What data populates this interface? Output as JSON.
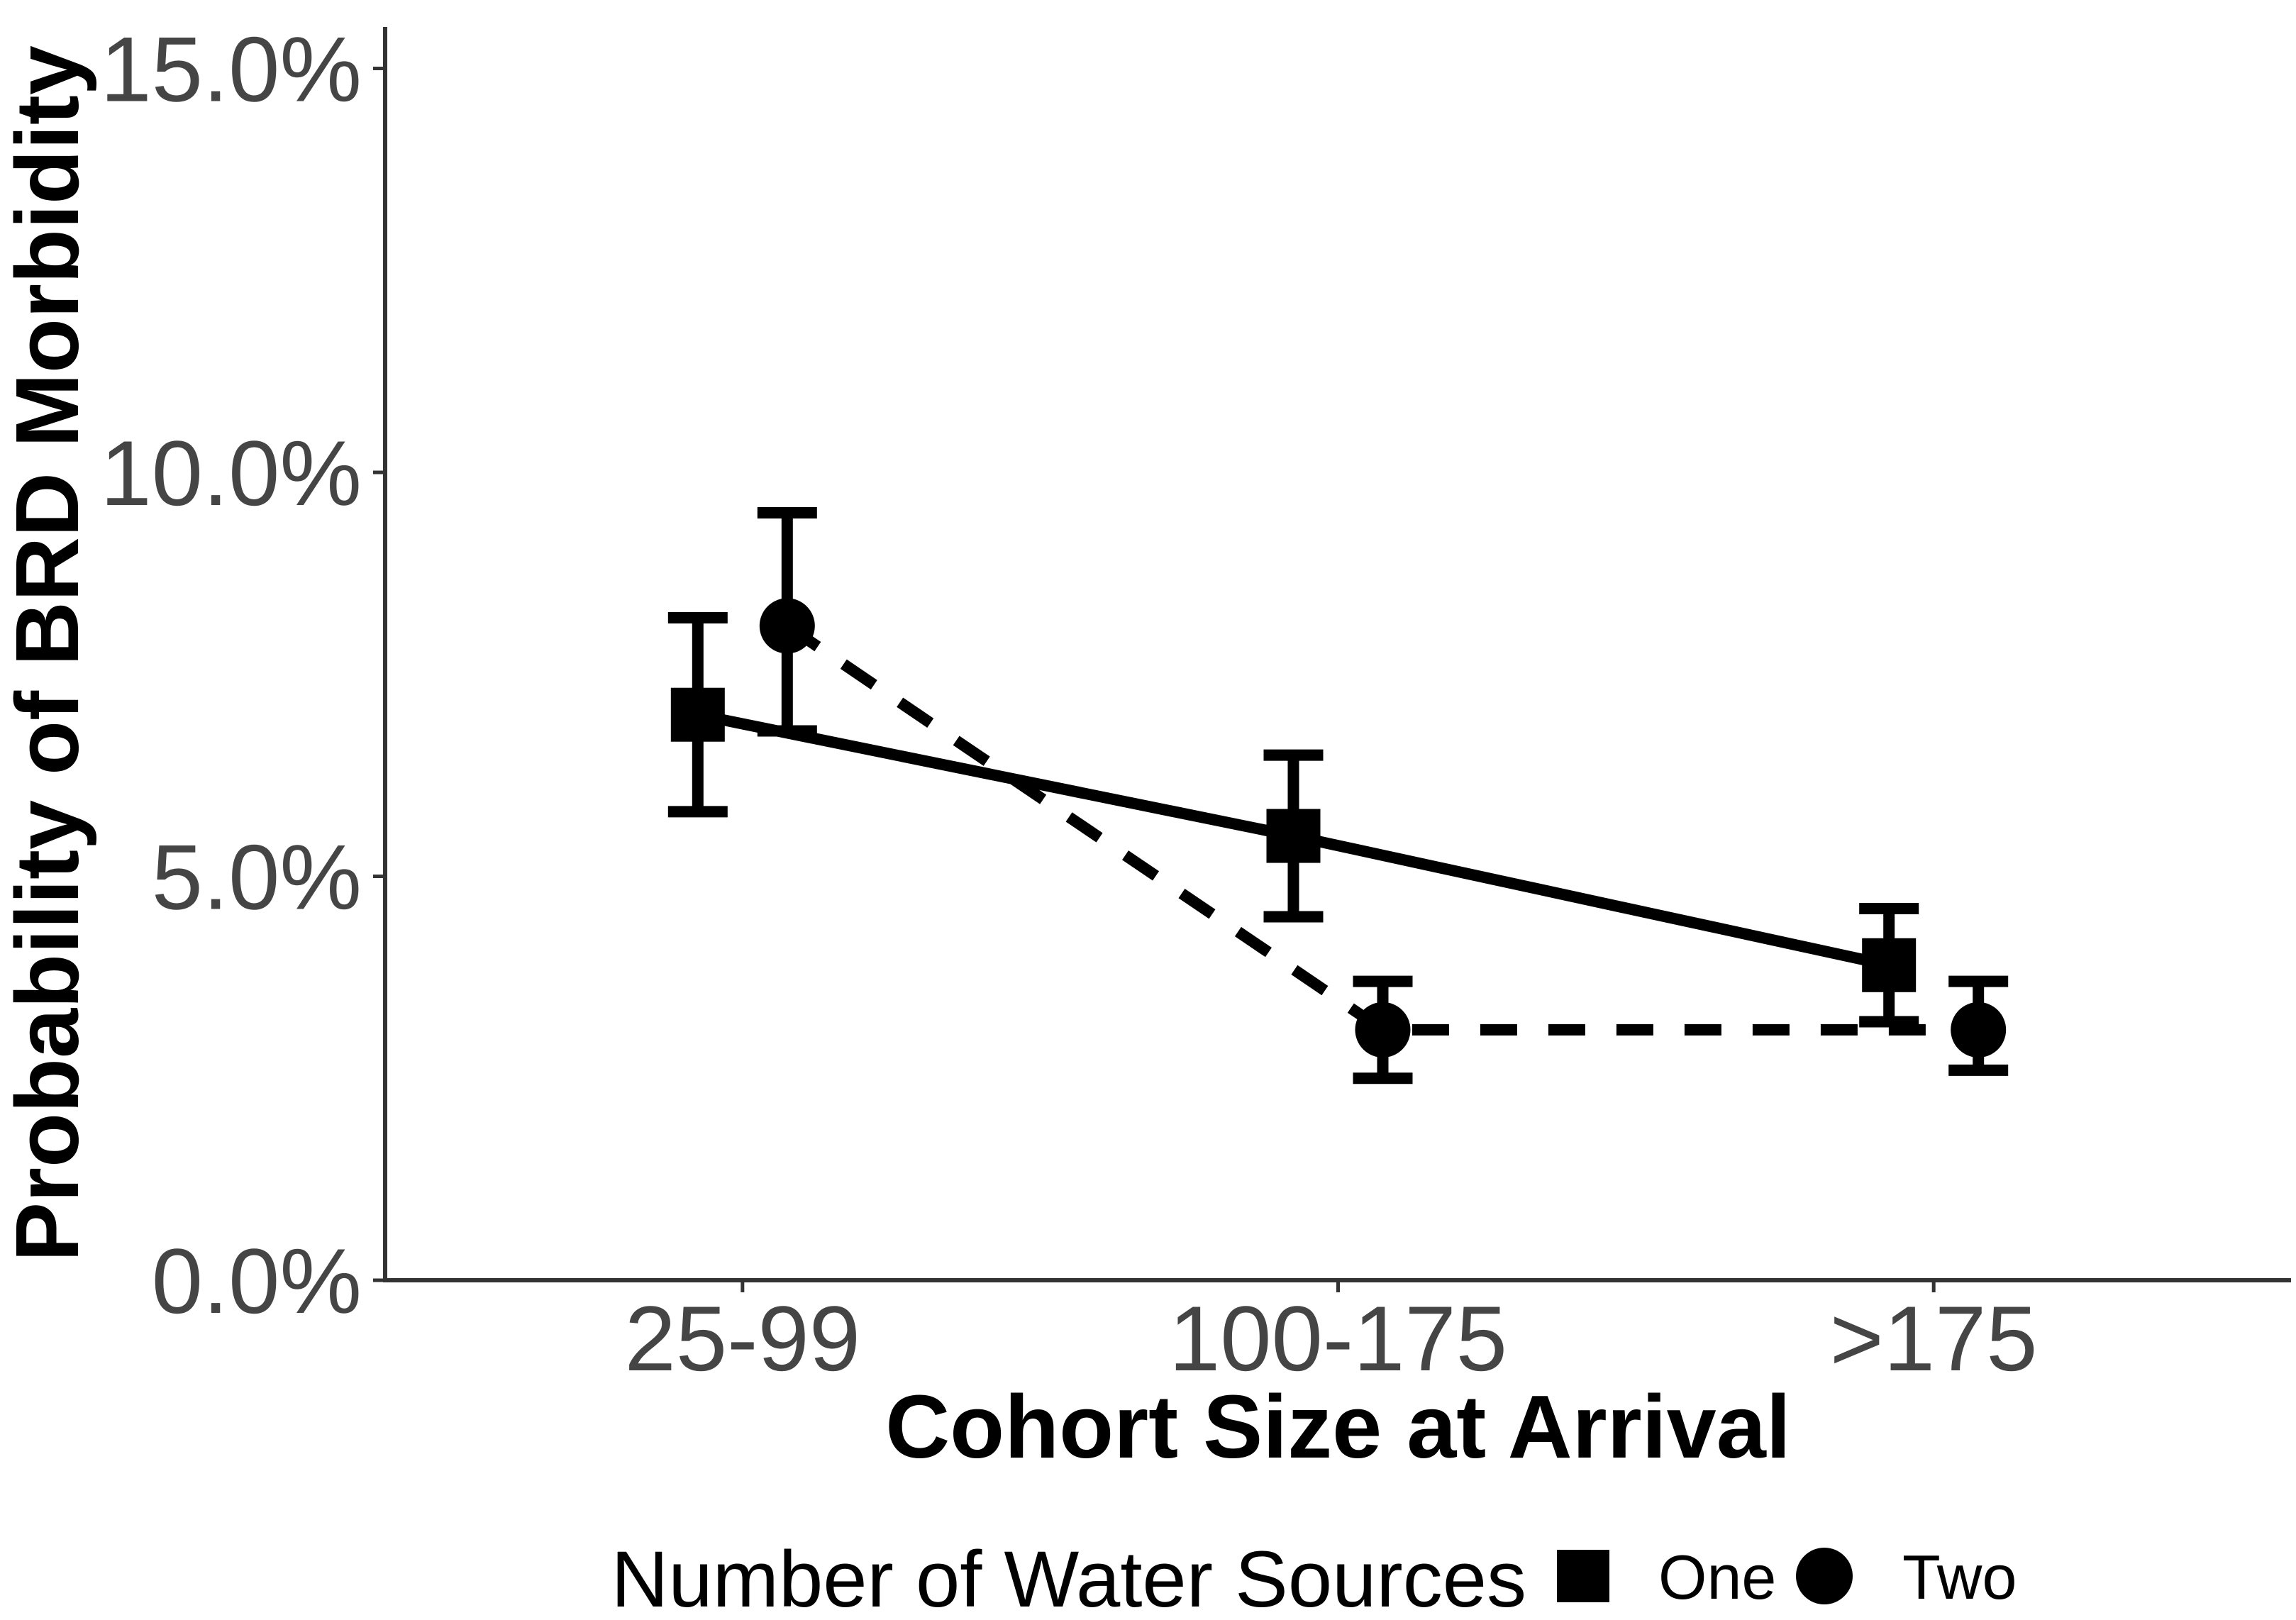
{
  "chart_data": {
    "type": "line",
    "title": "",
    "xlabel": "Cohort Size at Arrival",
    "ylabel": "Probability of BRD Morbidity",
    "categories": [
      "25-99",
      "100-175",
      ">175"
    ],
    "y_ticks": [
      {
        "value": 0,
        "label": "0.0%"
      },
      {
        "value": 5,
        "label": "5.0%"
      },
      {
        "value": 10,
        "label": "10.0%"
      },
      {
        "value": 15,
        "label": "15.0%"
      }
    ],
    "ylim": [
      0,
      15.5
    ],
    "grid": "off",
    "legend": {
      "title": "Number of Water Sources",
      "position": "bottom",
      "entries": [
        {
          "label": "One",
          "marker": "square"
        },
        {
          "label": "Two",
          "marker": "circle"
        }
      ]
    },
    "series": [
      {
        "name": "One",
        "marker": "square",
        "line_style": "solid",
        "values": [
          7.0,
          5.5,
          3.9
        ],
        "ci_low": [
          5.8,
          4.5,
          3.2
        ],
        "ci_high": [
          8.2,
          6.5,
          4.6
        ]
      },
      {
        "name": "Two",
        "marker": "circle",
        "line_style": "dashed",
        "values": [
          8.1,
          3.1,
          3.1
        ],
        "ci_low": [
          6.8,
          2.5,
          2.6
        ],
        "ci_high": [
          9.5,
          3.7,
          3.7
        ]
      }
    ],
    "colors": {
      "series": "#000000",
      "axis_line": "#333333",
      "tick_label": "#454545",
      "axis_title": "#000000",
      "legend_text": "#000000",
      "background": "#ffffff"
    }
  }
}
